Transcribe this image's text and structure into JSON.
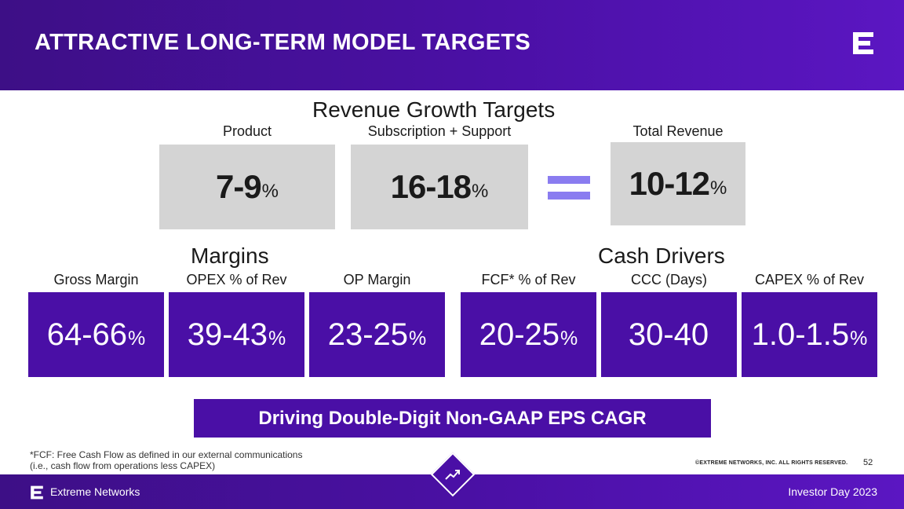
{
  "header": {
    "title": "ATTRACTIVE LONG-TERM MODEL TARGETS"
  },
  "revenue": {
    "title": "Revenue Growth Targets",
    "product": {
      "label": "Product",
      "range": "7-9",
      "unit": "%"
    },
    "subscription": {
      "label": "Subscription + Support",
      "range": "16-18",
      "unit": "%"
    },
    "total": {
      "label": "Total Revenue",
      "range": "10-12",
      "unit": "%"
    }
  },
  "margins": {
    "title": "Margins",
    "items": [
      {
        "label": "Gross Margin",
        "range": "64-66",
        "unit": "%"
      },
      {
        "label": "OPEX % of Rev",
        "range": "39-43",
        "unit": "%"
      },
      {
        "label": "OP Margin",
        "range": "23-25",
        "unit": "%"
      }
    ]
  },
  "cash": {
    "title": "Cash Drivers",
    "items": [
      {
        "label": "FCF* % of Rev",
        "range": "20-25",
        "unit": "%"
      },
      {
        "label": "CCC (Days)",
        "range": "30-40",
        "unit": ""
      },
      {
        "label": "CAPEX % of Rev",
        "range": "1.0-1.5",
        "unit": "%"
      }
    ]
  },
  "banner": {
    "text": "Driving Double-Digit Non-GAAP EPS CAGR"
  },
  "footnote": {
    "line1": "*FCF: Free Cash Flow as defined in our external communications",
    "line2": "(i.e., cash flow from operations less CAPEX)"
  },
  "copyright": "©EXTREME NETWORKS, INC. ALL RIGHTS RESERVED.",
  "page_number": "52",
  "footer": {
    "company": "Extreme Networks",
    "event": "Investor Day 2023"
  },
  "colors": {
    "brand_purple": "#4a0fa6",
    "header_purple": "#4b10a6",
    "box_gray": "#d4d4d4",
    "equals_lavender": "#8a7cf0"
  },
  "icons": {
    "logo": "extreme-logo-icon",
    "trend": "trend-up-icon"
  }
}
